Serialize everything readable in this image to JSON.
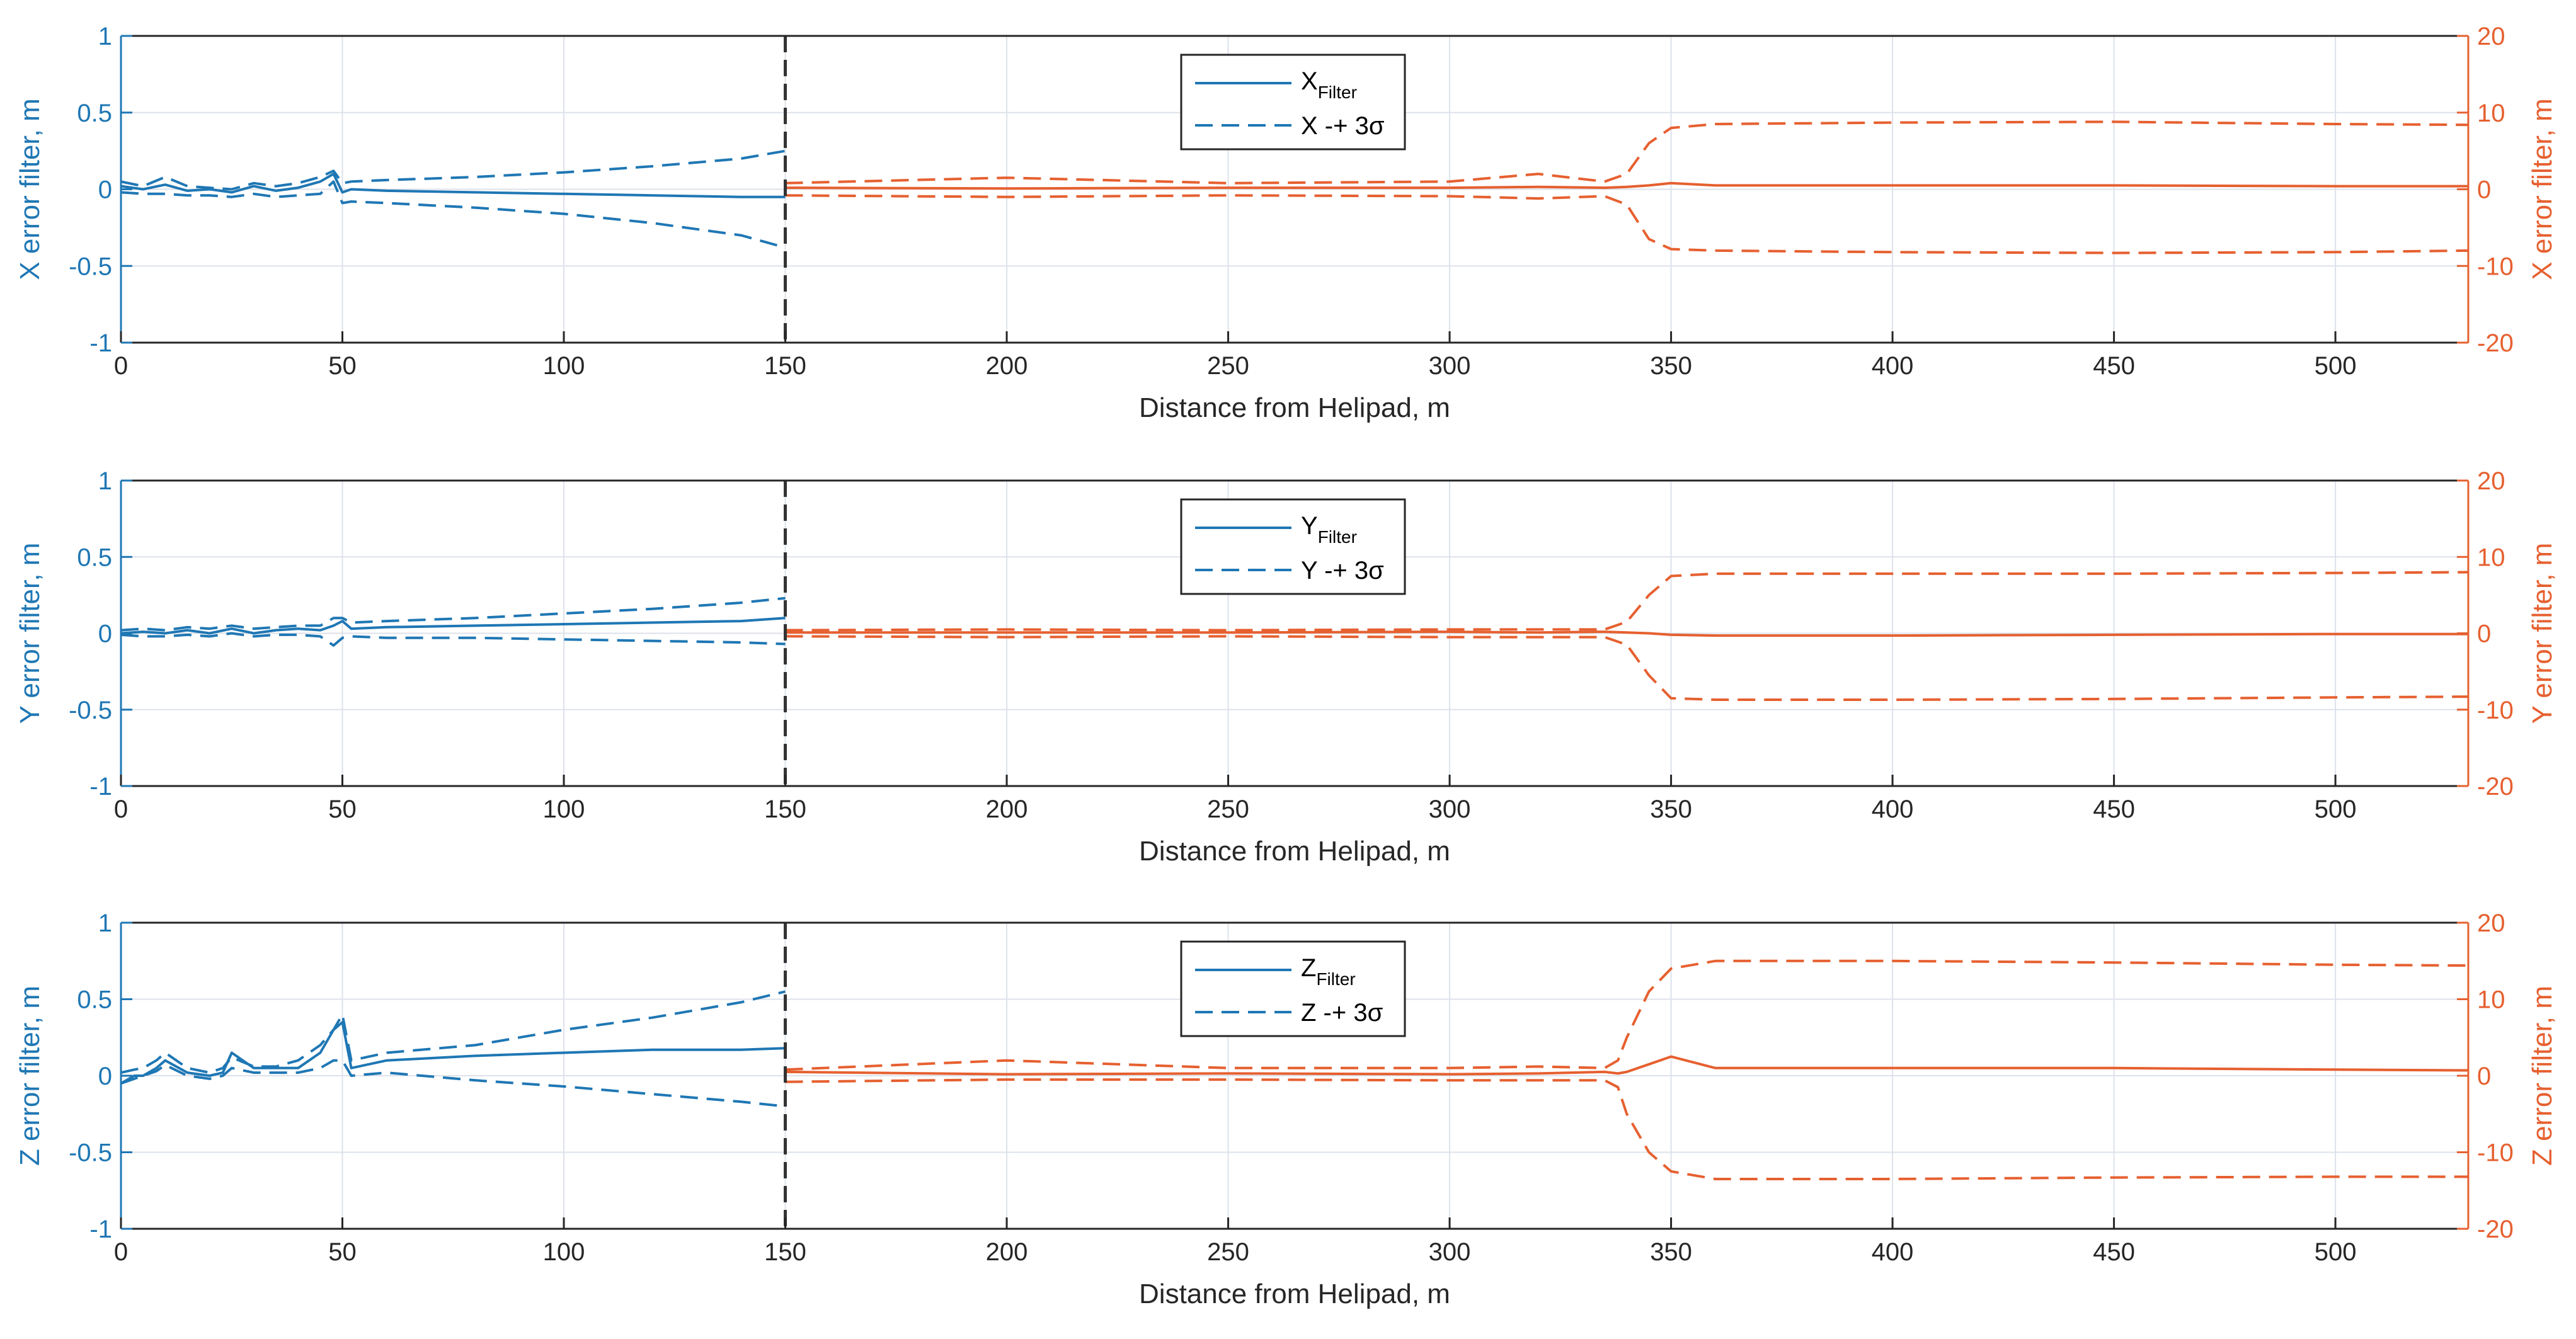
{
  "colors": {
    "left": "#1f77b4",
    "right": "#e66030",
    "divider": "#333333",
    "grid": "#dde2ea",
    "axes": "#262626"
  },
  "chart_data": [
    {
      "type": "line",
      "xlabel": "Distance from Helipad, m",
      "ylabel_left": "X error filter, m",
      "ylabel_right": "X error filter, m",
      "xlim": [
        0,
        530
      ],
      "ylim_left": [
        -1,
        1
      ],
      "ylim_right": [
        -20,
        20
      ],
      "xticks": [
        "0",
        "50",
        "100",
        "150",
        "200",
        "250",
        "300",
        "350",
        "400",
        "450",
        "500"
      ],
      "yticks_left": [
        "1",
        "0.5",
        "0",
        "-0.5",
        "-1"
      ],
      "yticks_right": [
        "20",
        "10",
        "0",
        "-10",
        "-20"
      ],
      "divider_x": 150,
      "legend": {
        "main": "X",
        "sub": "Filter",
        "sigma": "X -+ 3σ"
      },
      "left_series": {
        "x": [
          0,
          5,
          10,
          15,
          20,
          25,
          30,
          35,
          40,
          45,
          48,
          50,
          52,
          60,
          80,
          100,
          120,
          140,
          150
        ],
        "filter": [
          0.02,
          0.0,
          0.03,
          -0.01,
          0.0,
          -0.02,
          0.02,
          -0.01,
          0.01,
          0.05,
          0.1,
          -0.02,
          0.0,
          -0.01,
          -0.02,
          -0.03,
          -0.04,
          -0.05,
          -0.05
        ],
        "upper": [
          0.05,
          0.02,
          0.08,
          0.02,
          0.01,
          0.0,
          0.04,
          0.02,
          0.04,
          0.08,
          0.12,
          0.04,
          0.05,
          0.06,
          0.08,
          0.11,
          0.15,
          0.2,
          0.25
        ],
        "lower": [
          -0.02,
          -0.03,
          -0.03,
          -0.04,
          -0.04,
          -0.05,
          -0.03,
          -0.05,
          -0.04,
          -0.03,
          0.05,
          -0.09,
          -0.08,
          -0.09,
          -0.12,
          -0.16,
          -0.22,
          -0.3,
          -0.38
        ]
      },
      "right_series": {
        "x": [
          150,
          200,
          250,
          300,
          320,
          335,
          340,
          345,
          350,
          360,
          400,
          450,
          500,
          530
        ],
        "filter": [
          0.2,
          0.1,
          0.2,
          0.2,
          0.3,
          0.2,
          0.3,
          0.5,
          0.8,
          0.5,
          0.5,
          0.5,
          0.4,
          0.4
        ],
        "upper": [
          0.8,
          1.5,
          0.8,
          1.0,
          2.0,
          1.0,
          2.0,
          6.0,
          8.0,
          8.5,
          8.7,
          8.8,
          8.5,
          8.4
        ],
        "lower": [
          -0.8,
          -1.0,
          -0.8,
          -0.9,
          -1.2,
          -0.9,
          -2.0,
          -6.5,
          -7.8,
          -8.0,
          -8.2,
          -8.3,
          -8.2,
          -8.0
        ]
      }
    },
    {
      "type": "line",
      "xlabel": "Distance from Helipad, m",
      "ylabel_left": "Y error filter, m",
      "ylabel_right": "Y error filter, m",
      "xlim": [
        0,
        530
      ],
      "ylim_left": [
        -1,
        1
      ],
      "ylim_right": [
        -20,
        20
      ],
      "xticks": [
        "0",
        "50",
        "100",
        "150",
        "200",
        "250",
        "300",
        "350",
        "400",
        "450",
        "500"
      ],
      "yticks_left": [
        "1",
        "0.5",
        "0",
        "-0.5",
        "-1"
      ],
      "yticks_right": [
        "20",
        "10",
        "0",
        "-10",
        "-20"
      ],
      "divider_x": 150,
      "legend": {
        "main": "Y",
        "sub": "Filter",
        "sigma": "Y -+ 3σ"
      },
      "left_series": {
        "x": [
          0,
          5,
          10,
          15,
          20,
          25,
          30,
          35,
          40,
          45,
          48,
          50,
          52,
          60,
          80,
          100,
          120,
          140,
          150
        ],
        "filter": [
          0.0,
          0.01,
          0.0,
          0.02,
          0.0,
          0.03,
          0.0,
          0.02,
          0.03,
          0.02,
          0.05,
          0.08,
          0.03,
          0.04,
          0.05,
          0.06,
          0.07,
          0.08,
          0.1
        ],
        "upper": [
          0.02,
          0.03,
          0.02,
          0.04,
          0.03,
          0.05,
          0.03,
          0.04,
          0.05,
          0.05,
          0.1,
          0.1,
          0.07,
          0.08,
          0.1,
          0.13,
          0.16,
          0.2,
          0.23
        ],
        "lower": [
          -0.01,
          -0.02,
          -0.02,
          -0.01,
          -0.02,
          0.0,
          -0.02,
          -0.01,
          -0.01,
          -0.02,
          -0.08,
          -0.03,
          -0.02,
          -0.03,
          -0.03,
          -0.04,
          -0.05,
          -0.06,
          -0.07
        ]
      },
      "right_series": {
        "x": [
          150,
          200,
          250,
          300,
          320,
          335,
          340,
          345,
          350,
          360,
          400,
          450,
          500,
          530
        ],
        "filter": [
          0.1,
          0.1,
          0.1,
          0.2,
          0.1,
          0.2,
          0.1,
          0.0,
          -0.2,
          -0.3,
          -0.3,
          -0.2,
          -0.1,
          -0.1
        ],
        "upper": [
          0.4,
          0.5,
          0.4,
          0.5,
          0.5,
          0.5,
          1.5,
          5.0,
          7.5,
          7.8,
          7.8,
          7.8,
          7.9,
          8.0
        ],
        "lower": [
          -0.4,
          -0.5,
          -0.4,
          -0.5,
          -0.5,
          -0.5,
          -1.5,
          -5.5,
          -8.5,
          -8.7,
          -8.7,
          -8.6,
          -8.4,
          -8.3
        ]
      }
    },
    {
      "type": "line",
      "xlabel": "Distance from Helipad, m",
      "ylabel_left": "Z error filter, m",
      "ylabel_right": "Z error filter, m",
      "xlim": [
        0,
        530
      ],
      "ylim_left": [
        -1,
        1
      ],
      "ylim_right": [
        -20,
        20
      ],
      "xticks": [
        "0",
        "50",
        "100",
        "150",
        "200",
        "250",
        "300",
        "350",
        "400",
        "450",
        "500"
      ],
      "yticks_left": [
        "1",
        "0.5",
        "0",
        "-0.5",
        "-1"
      ],
      "yticks_right": [
        "20",
        "10",
        "0",
        "-10",
        "-20"
      ],
      "divider_x": 150,
      "legend": {
        "main": "Z",
        "sub": "Filter",
        "sigma": "Z -+ 3σ"
      },
      "left_series": {
        "x": [
          0,
          3,
          5,
          8,
          10,
          15,
          20,
          23,
          25,
          30,
          35,
          40,
          45,
          48,
          50,
          52,
          60,
          80,
          100,
          120,
          140,
          150
        ],
        "filter": [
          -0.05,
          0.0,
          0.0,
          0.05,
          0.1,
          0.02,
          0.0,
          0.02,
          0.15,
          0.05,
          0.05,
          0.05,
          0.15,
          0.3,
          0.35,
          0.05,
          0.1,
          0.13,
          0.15,
          0.17,
          0.17,
          0.18
        ],
        "upper": [
          0.02,
          0.04,
          0.05,
          0.1,
          0.15,
          0.05,
          0.02,
          0.05,
          0.12,
          0.06,
          0.06,
          0.1,
          0.2,
          0.3,
          0.4,
          0.1,
          0.15,
          0.2,
          0.3,
          0.38,
          0.48,
          0.55
        ],
        "lower": [
          -0.05,
          -0.02,
          0.0,
          0.03,
          0.07,
          0.0,
          -0.02,
          0.0,
          0.05,
          0.02,
          0.02,
          0.02,
          0.05,
          0.1,
          0.1,
          0.0,
          0.02,
          -0.03,
          -0.07,
          -0.12,
          -0.17,
          -0.2
        ]
      },
      "right_series": {
        "x": [
          150,
          200,
          250,
          300,
          320,
          335,
          338,
          340,
          345,
          350,
          360,
          400,
          450,
          500,
          530
        ],
        "filter": [
          0.5,
          0.2,
          0.3,
          0.2,
          0.3,
          0.5,
          0.3,
          0.5,
          1.5,
          2.5,
          1.0,
          1.0,
          1.0,
          0.8,
          0.7
        ],
        "upper": [
          0.8,
          2.0,
          1.0,
          1.0,
          1.2,
          1.0,
          2.0,
          5.0,
          11.0,
          14.0,
          15.0,
          15.0,
          14.8,
          14.5,
          14.4
        ],
        "lower": [
          -0.8,
          -0.5,
          -0.5,
          -0.6,
          -0.6,
          -0.6,
          -1.5,
          -5.0,
          -10.0,
          -12.5,
          -13.5,
          -13.5,
          -13.3,
          -13.2,
          -13.2
        ]
      }
    }
  ]
}
